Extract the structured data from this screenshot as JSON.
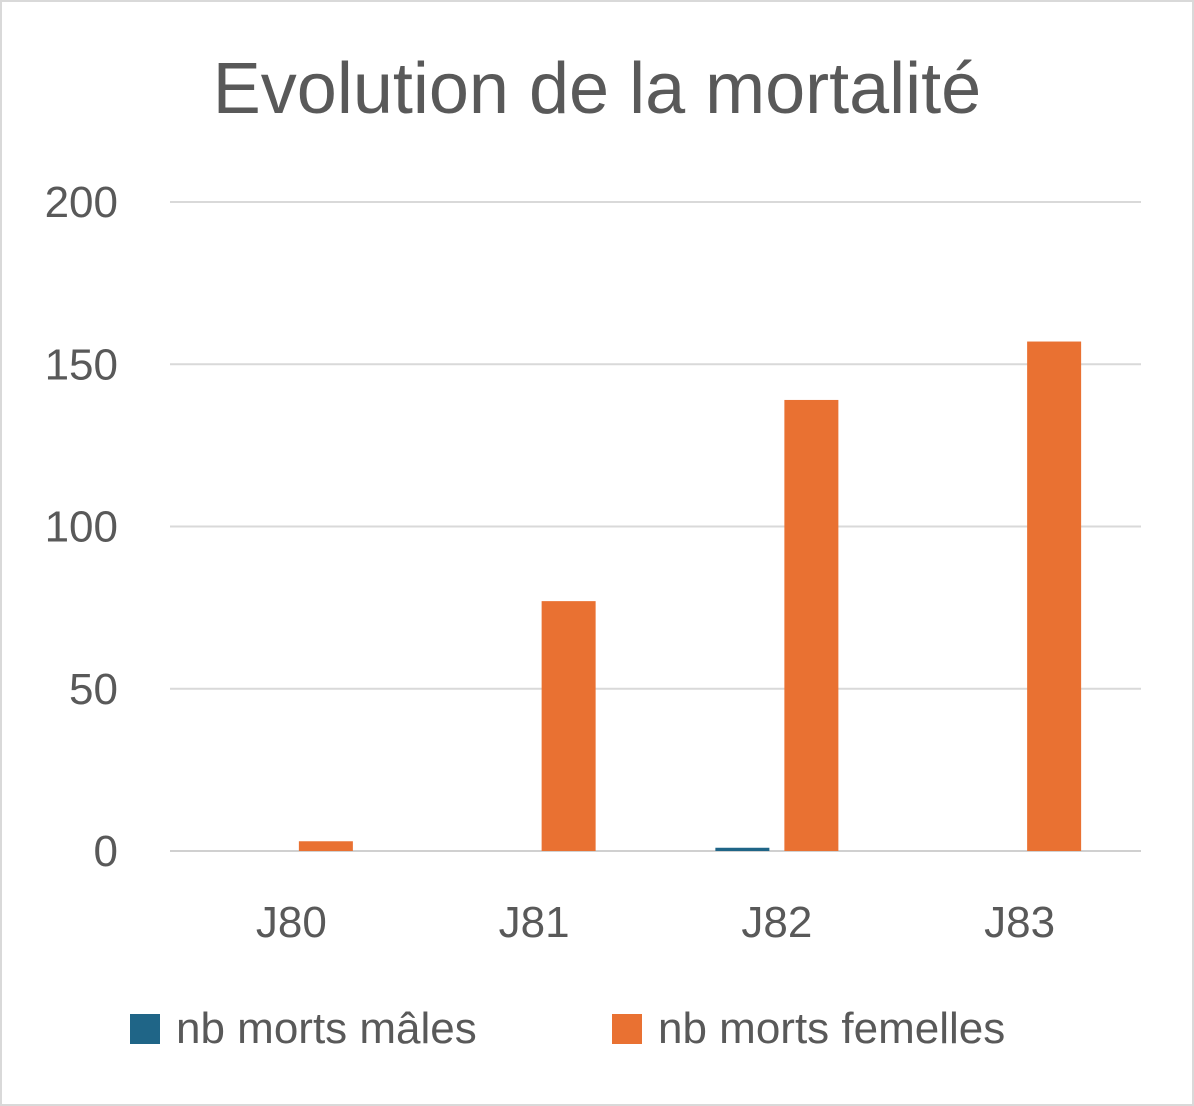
{
  "chart_data": {
    "type": "bar",
    "title": "Evolution de la mortalité",
    "xlabel": "",
    "ylabel": "",
    "categories": [
      "J80",
      "J81",
      "J82",
      "J83"
    ],
    "series": [
      {
        "name": "nb morts mâles",
        "color": "#1f6587",
        "values": [
          0,
          0,
          1,
          0
        ]
      },
      {
        "name": "nb morts femelles",
        "color": "#e97132",
        "values": [
          3,
          77,
          139,
          157
        ]
      }
    ],
    "ylim": [
      0,
      200
    ],
    "yticks": [
      "0",
      "50",
      "100",
      "150",
      "200"
    ],
    "grid": true,
    "legend_position": "bottom"
  }
}
